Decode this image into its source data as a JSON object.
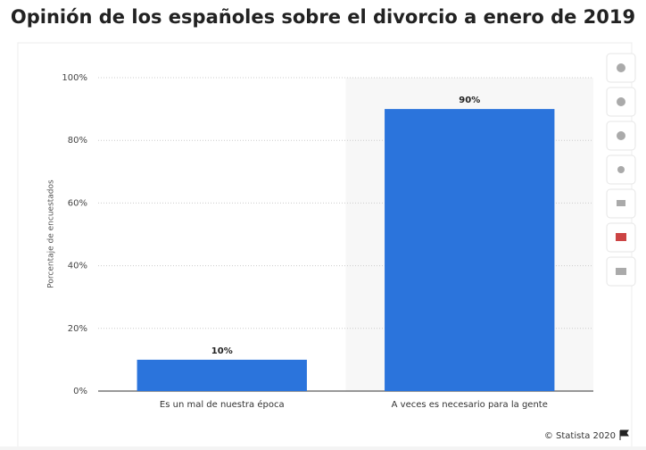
{
  "chart_data": {
    "type": "bar",
    "title": "Opinión de los españoles sobre el divorcio a enero de 2019",
    "y_label": "Porcentaje de encuestados",
    "categories": [
      "Es un mal de nuestra época",
      "A veces es necesario para la gente"
    ],
    "values": [
      10,
      90
    ],
    "value_labels": [
      "10%",
      "90%"
    ],
    "color": "#2b74dc",
    "ylim": [
      0,
      100
    ],
    "yticks": [
      {
        "value": 0,
        "label": "0%"
      },
      {
        "value": 20,
        "label": "20%"
      },
      {
        "value": 40,
        "label": "40%"
      },
      {
        "value": 60,
        "label": "60%"
      },
      {
        "value": 80,
        "label": "80%"
      },
      {
        "value": 100,
        "label": "100%"
      }
    ],
    "grid": true,
    "source": "© Statista 2020"
  }
}
